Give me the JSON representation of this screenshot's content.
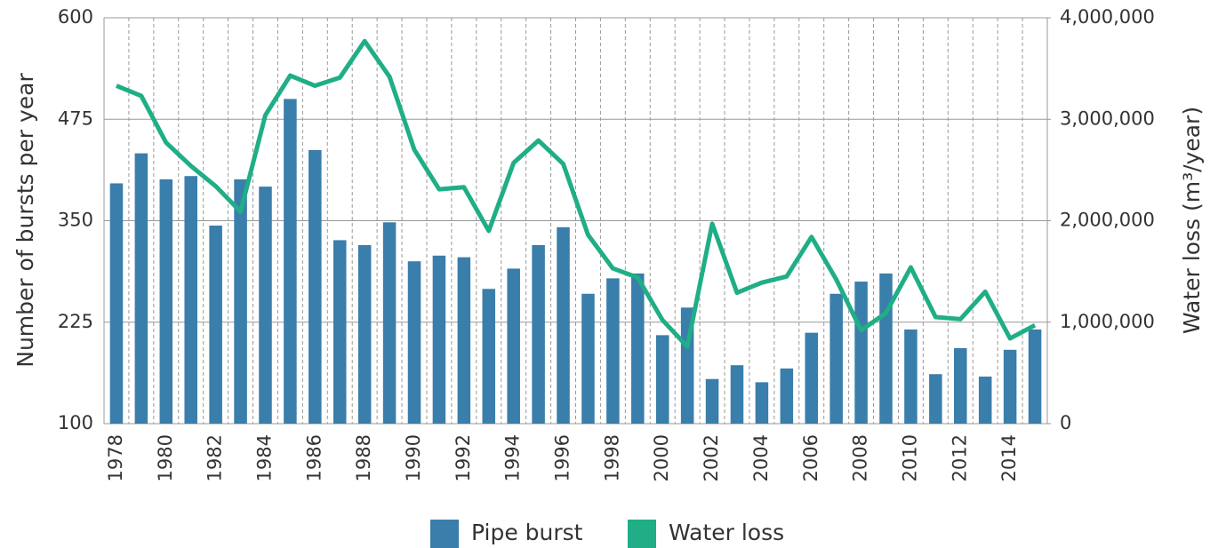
{
  "chart_data": {
    "type": "bar-line",
    "categories": [
      1978,
      null,
      1980,
      null,
      1982,
      null,
      1984,
      null,
      1986,
      null,
      1988,
      null,
      1990,
      null,
      1992,
      null,
      1994,
      null,
      1996,
      null,
      1998,
      null,
      2000,
      null,
      2002,
      null,
      2004,
      null,
      2006,
      null,
      2008,
      null,
      2010,
      null,
      2012,
      null,
      2014,
      null
    ],
    "series": [
      {
        "name": "Pipe burst",
        "color": "#3a7eab",
        "type": "bar",
        "axis": "y",
        "values": [
          396,
          433,
          401,
          405,
          344,
          401,
          392,
          500,
          437,
          326,
          320,
          348,
          300,
          307,
          305,
          266,
          291,
          320,
          342,
          260,
          279,
          285,
          209,
          243,
          155,
          172,
          151,
          168,
          212,
          260,
          275,
          285,
          216,
          161,
          193,
          158,
          191,
          216
        ]
      },
      {
        "name": "Water loss",
        "color": "#1fae86",
        "type": "line",
        "axis": "y2",
        "values": [
          3330000,
          3230000,
          2770000,
          2540000,
          2340000,
          2090000,
          3040000,
          3430000,
          3330000,
          3410000,
          3770000,
          3420000,
          2700000,
          2310000,
          2330000,
          1900000,
          2570000,
          2790000,
          2560000,
          1860000,
          1530000,
          1440000,
          1020000,
          760000,
          1970000,
          1290000,
          1390000,
          1450000,
          1840000,
          1420000,
          920000,
          1090000,
          1540000,
          1050000,
          1030000,
          1300000,
          840000,
          970000
        ]
      }
    ],
    "y_label": "Number of bursts per year",
    "y2_label": "Water loss (m³/year)",
    "ylim": [
      100,
      600
    ],
    "yticks": [
      100,
      225,
      350,
      475,
      600
    ],
    "y2lim": [
      0,
      4000000
    ],
    "y2ticks": [
      0,
      {
        "value": 1000000,
        "label": "1,000,000"
      },
      {
        "value": 2000000,
        "label": "2,000,000"
      },
      {
        "value": 3000000,
        "label": "3,000,000"
      },
      {
        "value": 4000000,
        "label": "4,000,000"
      }
    ],
    "grid": true,
    "legend": "bottom"
  }
}
